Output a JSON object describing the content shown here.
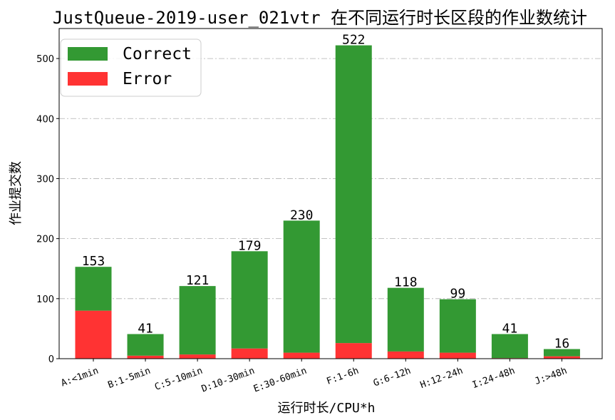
{
  "chart_data": {
    "type": "bar",
    "stacked": true,
    "title": "JustQueue-2019-user_021vtr 在不同运行时长区段的作业数统计",
    "xlabel": "运行时长/CPU*h",
    "ylabel": "作业提交数",
    "ylim": [
      0,
      550
    ],
    "yticks": [
      0,
      100,
      200,
      300,
      400,
      500
    ],
    "grid": "y-dashdot",
    "legend_position": "top-left",
    "categories": [
      "A:<1min",
      "B:1-5min",
      "C:5-10min",
      "D:10-30min",
      "E:30-60min",
      "F:1-6h",
      "G:6-12h",
      "H:12-24h",
      "I:24-48h",
      "J:>48h"
    ],
    "series": [
      {
        "name": "Error",
        "color": "#ff3333",
        "values": [
          80,
          5,
          7,
          17,
          10,
          26,
          12,
          10,
          1,
          4
        ]
      },
      {
        "name": "Correct",
        "color": "#339933",
        "values": [
          73,
          36,
          114,
          162,
          220,
          496,
          106,
          89,
          40,
          12
        ]
      }
    ],
    "totals": [
      153,
      41,
      121,
      179,
      230,
      522,
      118,
      99,
      41,
      16
    ]
  }
}
